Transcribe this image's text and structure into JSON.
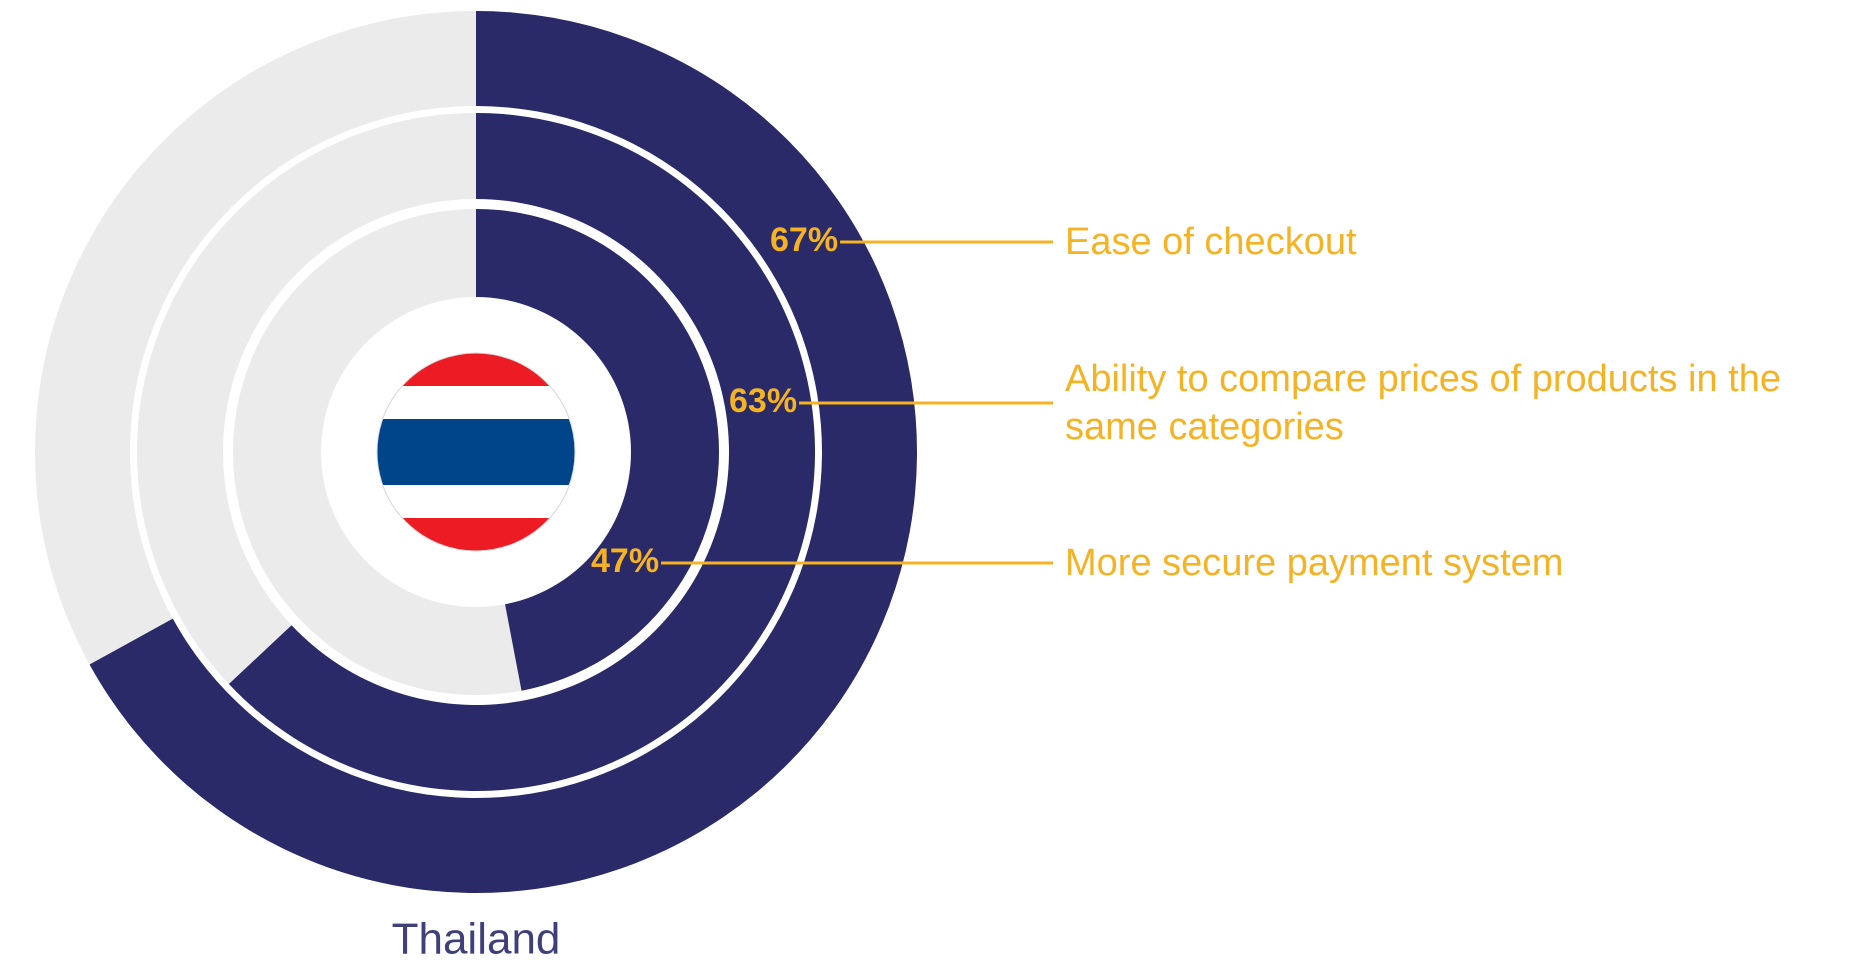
{
  "chart_data": {
    "type": "radial_bar",
    "title": "Thailand",
    "categories": [
      "Ease of checkout",
      "Ability to compare prices of products in the same categories",
      "More secure payment system"
    ],
    "values": [
      67,
      63,
      47
    ],
    "value_labels": [
      "67%",
      "63%",
      "47%"
    ],
    "ylim": [
      0,
      100
    ],
    "color": "#292a67",
    "track_color": "#ebebeb",
    "label_color": "#f5b324",
    "title_color": "#3f3f7a"
  }
}
